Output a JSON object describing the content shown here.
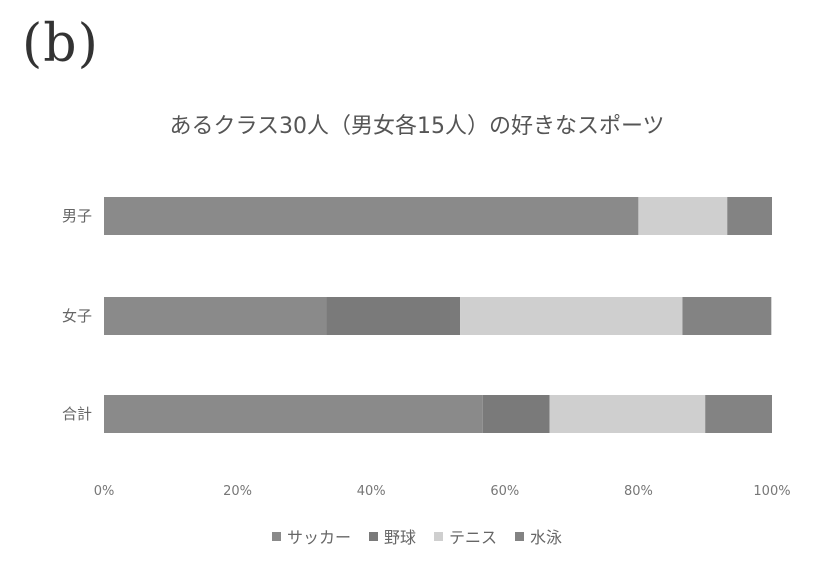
{
  "panel_label": "(b)",
  "chart_data": {
    "type": "bar",
    "orientation": "horizontal",
    "stacked": "percent",
    "title": "あるクラス30人（男女各15人）の好きなスポーツ",
    "categories": [
      "男子",
      "女子",
      "合計"
    ],
    "series": [
      {
        "name": "サッカー",
        "values": [
          80,
          33.3,
          56.7
        ],
        "color": "#8a8a8a"
      },
      {
        "name": "野球",
        "values": [
          0,
          20,
          10
        ],
        "color": "#7a7a7a"
      },
      {
        "name": "テニス",
        "values": [
          13.3,
          33.3,
          23.3
        ],
        "color": "#cfcfcf"
      },
      {
        "name": "水泳",
        "values": [
          6.7,
          13.3,
          10
        ],
        "color": "#838383"
      }
    ],
    "xlim": [
      0,
      100
    ],
    "x_ticks": [
      "0%",
      "20%",
      "40%",
      "60%",
      "80%",
      "100%"
    ],
    "grid": false,
    "legend_position": "bottom"
  }
}
